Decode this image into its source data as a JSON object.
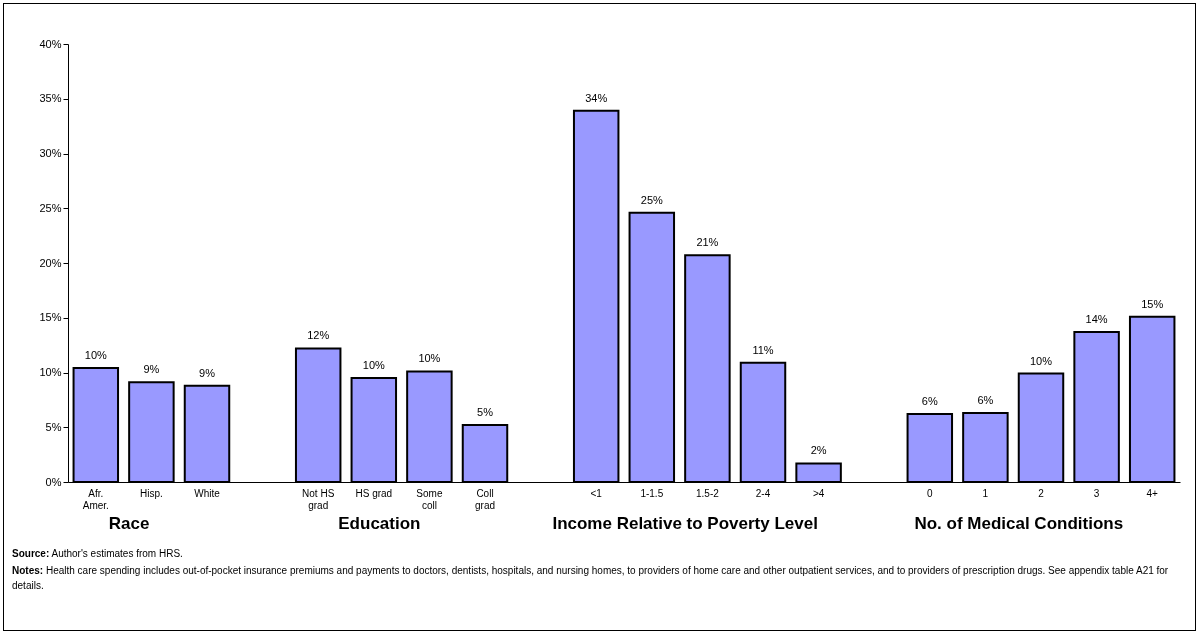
{
  "chart_data": {
    "type": "bar",
    "categories": [
      "Afr.\nAmer.",
      "Hisp.",
      "White",
      null,
      "Not HS\ngrad",
      "HS grad",
      "Some\ncoll",
      "Coll\ngrad",
      null,
      "<1",
      "1-1.5",
      "1.5-2",
      "2-4",
      ">4",
      null,
      "0",
      "1",
      "2",
      "3",
      "4+"
    ],
    "values": [
      10.4,
      9.1,
      8.8,
      null,
      12.2,
      9.5,
      10.1,
      5.2,
      null,
      33.9,
      24.6,
      20.7,
      10.9,
      1.7,
      null,
      6.2,
      6.3,
      9.9,
      13.7,
      15.1
    ],
    "value_labels": [
      "10%",
      "9%",
      "9%",
      null,
      "12%",
      "10%",
      "10%",
      "5%",
      null,
      "34%",
      "25%",
      "21%",
      "11%",
      "2%",
      null,
      "6%",
      "6%",
      "10%",
      "14%",
      "15%"
    ],
    "color": "#9999ff",
    "ylim": [
      0,
      40
    ],
    "yticks": [
      {
        "value": 0,
        "label": "0%"
      },
      {
        "value": 5,
        "label": "5%"
      },
      {
        "value": 10,
        "label": "10%"
      },
      {
        "value": 15,
        "label": "15%"
      },
      {
        "value": 20,
        "label": "20%"
      },
      {
        "value": 25,
        "label": "25%"
      },
      {
        "value": 30,
        "label": "30%"
      },
      {
        "value": 35,
        "label": "35%"
      },
      {
        "value": 40,
        "label": "40%"
      }
    ],
    "grid": false,
    "annotations": [
      "Race",
      "Education",
      "Income Relative to Poverty Level",
      "No. of Medical Conditions",
      "Source:  Author's estimates from HRS.",
      "Notes:  Health care spending includes out-of-pocket insurance premiums and payments to doctors, dentists, hospitals, and nursing homes, to providers of home care and other outpatient services, and to providers of prescription drugs. See appendix table A21 for details."
    ]
  }
}
